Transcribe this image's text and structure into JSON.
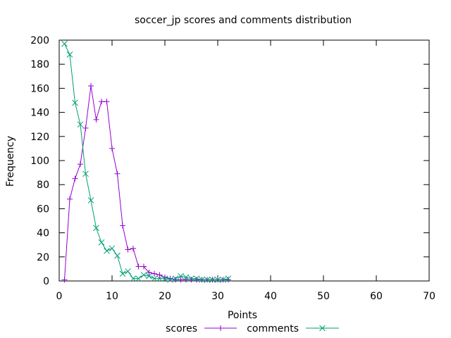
{
  "chart_data": {
    "type": "line",
    "title": "soccer_jp scores and comments distribution",
    "xlabel": "Points",
    "ylabel": "Frequency",
    "xlim": [
      0,
      70
    ],
    "ylim": [
      0,
      200
    ],
    "x_ticks": [
      0,
      10,
      20,
      30,
      40,
      50,
      60,
      70
    ],
    "y_ticks": [
      0,
      20,
      40,
      60,
      80,
      100,
      120,
      140,
      160,
      180,
      200
    ],
    "x_tick_labels": [
      "0",
      "10",
      "20",
      "30",
      "40",
      "50",
      "60",
      "70"
    ],
    "y_tick_labels": [
      "0",
      "20",
      "40",
      "60",
      "80",
      "100",
      "120",
      "140",
      "160",
      "180",
      "200"
    ],
    "grid": false,
    "legend_position": "bottom-center",
    "series": [
      {
        "name": "scores",
        "color": "#9400d3",
        "marker": "plus",
        "points": [
          [
            1,
            1
          ],
          [
            2,
            68
          ],
          [
            3,
            85
          ],
          [
            4,
            97
          ],
          [
            5,
            127
          ],
          [
            6,
            162
          ],
          [
            7,
            134
          ],
          [
            8,
            149
          ],
          [
            9,
            149
          ],
          [
            10,
            110
          ],
          [
            11,
            89
          ],
          [
            12,
            46
          ],
          [
            13,
            26
          ],
          [
            14,
            27
          ],
          [
            15,
            12
          ],
          [
            16,
            12
          ],
          [
            17,
            7
          ],
          [
            18,
            6
          ],
          [
            19,
            5
          ],
          [
            20,
            3
          ],
          [
            21,
            2
          ],
          [
            22,
            1
          ],
          [
            23,
            1
          ],
          [
            24,
            1
          ],
          [
            25,
            1
          ],
          [
            26,
            1
          ],
          [
            27,
            1
          ],
          [
            28,
            1
          ],
          [
            29,
            1
          ],
          [
            30,
            1
          ],
          [
            31,
            1
          ],
          [
            32,
            1
          ]
        ]
      },
      {
        "name": "comments",
        "color": "#009e73",
        "marker": "cross",
        "points": [
          [
            1,
            197
          ],
          [
            2,
            188
          ],
          [
            3,
            148
          ],
          [
            4,
            130
          ],
          [
            5,
            89
          ],
          [
            6,
            67
          ],
          [
            7,
            44
          ],
          [
            8,
            32
          ],
          [
            9,
            25
          ],
          [
            10,
            27
          ],
          [
            11,
            21
          ],
          [
            12,
            6
          ],
          [
            13,
            8
          ],
          [
            14,
            2
          ],
          [
            15,
            2
          ],
          [
            16,
            5
          ],
          [
            17,
            4
          ],
          [
            18,
            2
          ],
          [
            19,
            2
          ],
          [
            20,
            2
          ],
          [
            21,
            1
          ],
          [
            22,
            2
          ],
          [
            23,
            4
          ],
          [
            24,
            3
          ],
          [
            25,
            2
          ],
          [
            26,
            2
          ],
          [
            27,
            1
          ],
          [
            28,
            1
          ],
          [
            29,
            1
          ],
          [
            30,
            1
          ],
          [
            31,
            1
          ],
          [
            32,
            2
          ]
        ]
      }
    ]
  }
}
